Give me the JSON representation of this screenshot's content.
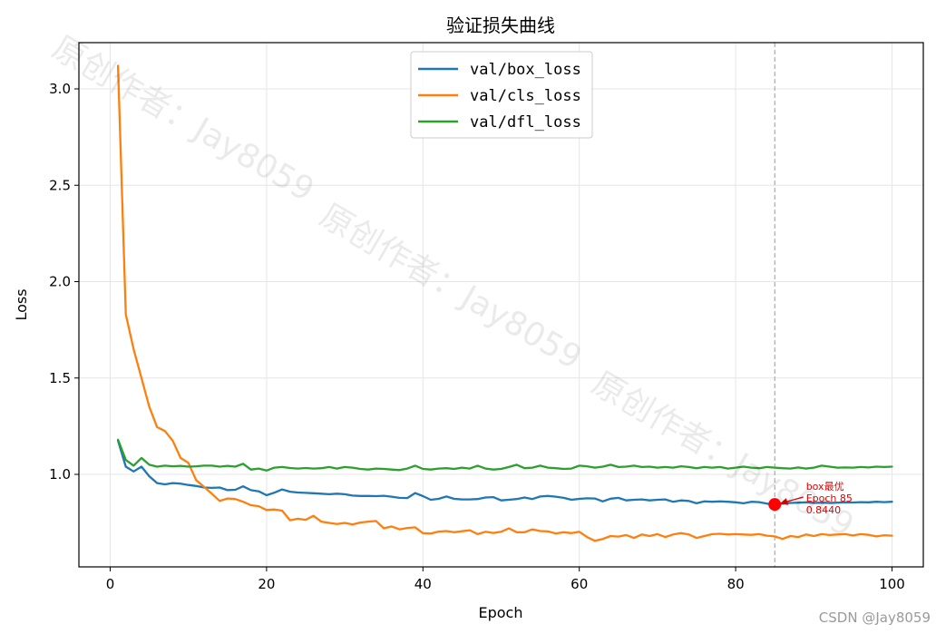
{
  "chart_data": {
    "type": "line",
    "title": "验证损失曲线",
    "xlabel": "Epoch",
    "ylabel": "Loss",
    "xlim": [
      -4,
      104
    ],
    "ylim": [
      0.52,
      3.24
    ],
    "xticks": [
      0,
      20,
      40,
      60,
      80,
      100
    ],
    "yticks": [
      1.0,
      1.5,
      2.0,
      2.5,
      3.0
    ],
    "xtick_labels": [
      "0",
      "20",
      "40",
      "60",
      "80",
      "100"
    ],
    "ytick_labels": [
      "1.0",
      "1.5",
      "2.0",
      "2.5",
      "3.0"
    ],
    "grid": true,
    "legend_position": "top-center",
    "x": [
      1,
      2,
      3,
      4,
      5,
      6,
      7,
      8,
      9,
      10,
      11,
      12,
      13,
      14,
      15,
      16,
      17,
      18,
      19,
      20,
      21,
      22,
      23,
      24,
      25,
      26,
      27,
      28,
      29,
      30,
      31,
      32,
      33,
      34,
      35,
      36,
      37,
      38,
      39,
      40,
      41,
      42,
      43,
      44,
      45,
      46,
      47,
      48,
      49,
      50,
      51,
      52,
      53,
      54,
      55,
      56,
      57,
      58,
      59,
      60,
      61,
      62,
      63,
      64,
      65,
      66,
      67,
      68,
      69,
      70,
      71,
      72,
      73,
      74,
      75,
      76,
      77,
      78,
      79,
      80,
      81,
      82,
      83,
      84,
      85,
      86,
      87,
      88,
      89,
      90,
      91,
      92,
      93,
      94,
      95,
      96,
      97,
      98,
      99,
      100
    ],
    "series": [
      {
        "name": "val/box_loss",
        "color": "#1f77b4",
        "values": [
          1.175,
          1.04,
          1.015,
          1.04,
          0.99,
          0.955,
          0.948,
          0.955,
          0.952,
          0.945,
          0.94,
          0.932,
          0.93,
          0.932,
          0.918,
          0.92,
          0.938,
          0.918,
          0.912,
          0.892,
          0.905,
          0.922,
          0.91,
          0.906,
          0.904,
          0.902,
          0.9,
          0.897,
          0.9,
          0.897,
          0.89,
          0.888,
          0.888,
          0.887,
          0.889,
          0.884,
          0.878,
          0.877,
          0.903,
          0.887,
          0.868,
          0.873,
          0.885,
          0.873,
          0.87,
          0.87,
          0.872,
          0.88,
          0.882,
          0.865,
          0.868,
          0.872,
          0.88,
          0.872,
          0.885,
          0.888,
          0.884,
          0.878,
          0.868,
          0.873,
          0.876,
          0.875,
          0.86,
          0.874,
          0.878,
          0.865,
          0.868,
          0.87,
          0.865,
          0.868,
          0.87,
          0.858,
          0.865,
          0.862,
          0.85,
          0.86,
          0.858,
          0.86,
          0.858,
          0.855,
          0.85,
          0.858,
          0.856,
          0.848,
          0.844,
          0.848,
          0.852,
          0.853,
          0.855,
          0.852,
          0.853,
          0.852,
          0.853,
          0.855,
          0.854,
          0.856,
          0.855,
          0.858,
          0.856,
          0.858
        ]
      },
      {
        "name": "val/cls_loss",
        "color": "#ff7f0e",
        "values": [
          3.12,
          1.83,
          1.65,
          1.5,
          1.35,
          1.245,
          1.225,
          1.175,
          1.085,
          1.06,
          0.97,
          0.935,
          0.9,
          0.862,
          0.875,
          0.872,
          0.858,
          0.84,
          0.835,
          0.815,
          0.818,
          0.812,
          0.762,
          0.77,
          0.764,
          0.785,
          0.755,
          0.748,
          0.742,
          0.748,
          0.74,
          0.75,
          0.755,
          0.758,
          0.72,
          0.73,
          0.715,
          0.722,
          0.725,
          0.695,
          0.693,
          0.703,
          0.706,
          0.7,
          0.705,
          0.71,
          0.69,
          0.702,
          0.696,
          0.702,
          0.72,
          0.7,
          0.7,
          0.715,
          0.706,
          0.704,
          0.693,
          0.7,
          0.695,
          0.702,
          0.675,
          0.655,
          0.665,
          0.68,
          0.677,
          0.685,
          0.67,
          0.688,
          0.68,
          0.69,
          0.675,
          0.688,
          0.695,
          0.688,
          0.67,
          0.68,
          0.69,
          0.692,
          0.688,
          0.69,
          0.688,
          0.686,
          0.69,
          0.682,
          0.678,
          0.665,
          0.68,
          0.675,
          0.688,
          0.68,
          0.69,
          0.685,
          0.688,
          0.69,
          0.683,
          0.69,
          0.686,
          0.678,
          0.684,
          0.682
        ]
      },
      {
        "name": "val/dfl_loss",
        "color": "#2ca02c",
        "values": [
          1.18,
          1.075,
          1.045,
          1.085,
          1.05,
          1.04,
          1.045,
          1.042,
          1.044,
          1.04,
          1.042,
          1.045,
          1.045,
          1.04,
          1.044,
          1.04,
          1.055,
          1.025,
          1.03,
          1.02,
          1.035,
          1.038,
          1.033,
          1.03,
          1.033,
          1.03,
          1.032,
          1.038,
          1.03,
          1.038,
          1.035,
          1.028,
          1.025,
          1.03,
          1.028,
          1.025,
          1.022,
          1.03,
          1.045,
          1.028,
          1.025,
          1.03,
          1.032,
          1.028,
          1.035,
          1.03,
          1.045,
          1.03,
          1.025,
          1.028,
          1.038,
          1.05,
          1.032,
          1.035,
          1.045,
          1.035,
          1.032,
          1.028,
          1.03,
          1.045,
          1.042,
          1.035,
          1.04,
          1.05,
          1.038,
          1.04,
          1.045,
          1.038,
          1.04,
          1.035,
          1.038,
          1.035,
          1.042,
          1.038,
          1.032,
          1.038,
          1.035,
          1.038,
          1.03,
          1.035,
          1.04,
          1.035,
          1.032,
          1.038,
          1.035,
          1.032,
          1.03,
          1.036,
          1.03,
          1.035,
          1.045,
          1.04,
          1.035,
          1.036,
          1.035,
          1.038,
          1.036,
          1.04,
          1.038,
          1.04
        ]
      }
    ],
    "vline": {
      "x": 85,
      "color": "#aaaaaa"
    },
    "marker": {
      "x": 85,
      "y": 0.844,
      "color": "#ff0000"
    },
    "annotation": {
      "lines": [
        "box最优",
        "Epoch 85",
        "0.8440"
      ],
      "color": "#e00000",
      "text_x": 89,
      "text_y": 0.92
    }
  },
  "watermark_text": "原创作者：Jay8059",
  "credit_text": "CSDN @Jay8059"
}
